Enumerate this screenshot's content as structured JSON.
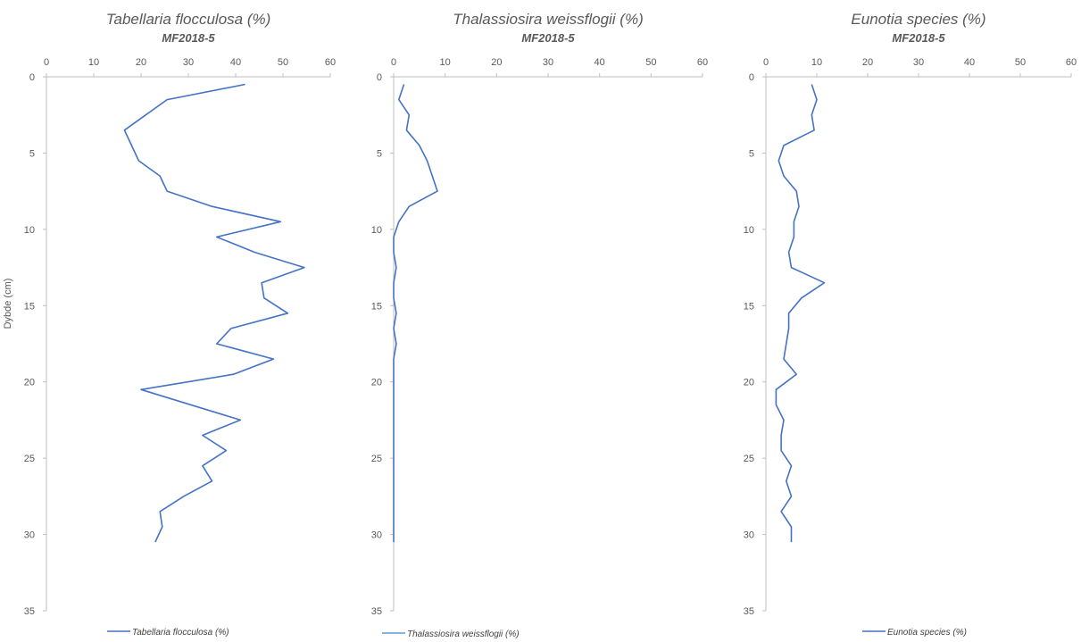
{
  "chart_data": [
    {
      "type": "line",
      "title": "Tabellaria flocculosa (%)",
      "subtitle": "MF2018-5",
      "ylabel": "Dybde (cm)",
      "xlim": [
        0,
        60
      ],
      "ylim": [
        0,
        35
      ],
      "x_ticks": [
        "0",
        "10",
        "20",
        "30",
        "40",
        "50",
        "60"
      ],
      "y_ticks": [
        "0",
        "5",
        "10",
        "15",
        "20",
        "25",
        "30",
        "35"
      ],
      "y_reversed": true,
      "legend": "bottom",
      "series": [
        {
          "name": "Tabellaria flocculosa (%)",
          "color": "#4472c4",
          "points": [
            [
              42,
              0.5
            ],
            [
              25.5,
              1.5
            ],
            [
              21,
              2.5
            ],
            [
              16.5,
              3.5
            ],
            [
              18,
              4.5
            ],
            [
              19.5,
              5.5
            ],
            [
              24,
              6.5
            ],
            [
              25.5,
              7.5
            ],
            [
              35,
              8.5
            ],
            [
              49.5,
              9.5
            ],
            [
              36,
              10.5
            ],
            [
              44,
              11.5
            ],
            [
              54.5,
              12.5
            ],
            [
              45.5,
              13.5
            ],
            [
              46,
              14.5
            ],
            [
              51,
              15.5
            ],
            [
              39,
              16.5
            ],
            [
              36,
              17.5
            ],
            [
              48,
              18.5
            ],
            [
              39.5,
              19.5
            ],
            [
              20,
              20.5
            ],
            [
              41,
              22.5
            ],
            [
              33,
              23.5
            ],
            [
              38,
              24.5
            ],
            [
              33,
              25.5
            ],
            [
              35,
              26.5
            ],
            [
              29,
              27.5
            ],
            [
              24,
              28.5
            ],
            [
              24.5,
              29.5
            ],
            [
              23,
              30.5
            ]
          ]
        }
      ]
    },
    {
      "type": "line",
      "title": "Thalassiosira weissflogii (%)",
      "subtitle": "MF2018-5",
      "xlim": [
        0,
        60
      ],
      "ylim": [
        0,
        35
      ],
      "x_ticks": [
        "0",
        "10",
        "20",
        "30",
        "40",
        "50",
        "60"
      ],
      "y_ticks": [
        "0",
        "5",
        "10",
        "15",
        "20",
        "25",
        "30",
        "35"
      ],
      "y_reversed": true,
      "legend": "bottom",
      "series": [
        {
          "name": "Thalassiosira weissflogii (%)",
          "color": "#4472c4",
          "legend_color": "#5b9bd5",
          "points": [
            [
              2,
              0.5
            ],
            [
              1,
              1.5
            ],
            [
              3,
              2.5
            ],
            [
              2.5,
              3.5
            ],
            [
              5,
              4.5
            ],
            [
              6.5,
              5.5
            ],
            [
              7.5,
              6.5
            ],
            [
              8.5,
              7.5
            ],
            [
              3,
              8.5
            ],
            [
              1,
              9.5
            ],
            [
              0,
              10.5
            ],
            [
              0,
              11.5
            ],
            [
              0.5,
              12.5
            ],
            [
              0,
              13.5
            ],
            [
              0,
              14.5
            ],
            [
              0.5,
              15.5
            ],
            [
              0,
              16.5
            ],
            [
              0.5,
              17.5
            ],
            [
              0,
              18.5
            ],
            [
              0,
              19.5
            ],
            [
              0,
              20.5
            ],
            [
              0,
              22.5
            ],
            [
              0,
              23.5
            ],
            [
              0,
              24.5
            ],
            [
              0,
              25.5
            ],
            [
              0,
              26.5
            ],
            [
              0,
              27.5
            ],
            [
              0,
              28.5
            ],
            [
              0,
              29.5
            ],
            [
              0,
              30.5
            ]
          ]
        }
      ]
    },
    {
      "type": "line",
      "title": "Eunotia species (%)",
      "subtitle": "MF2018-5",
      "xlim": [
        0,
        60
      ],
      "ylim": [
        0,
        35
      ],
      "x_ticks": [
        "0",
        "10",
        "20",
        "30",
        "40",
        "50",
        "60"
      ],
      "y_ticks": [
        "0",
        "5",
        "10",
        "15",
        "20",
        "25",
        "30",
        "35"
      ],
      "y_reversed": true,
      "legend": "bottom",
      "series": [
        {
          "name": "Eunotia species (%)",
          "color": "#4472c4",
          "points": [
            [
              9,
              0.5
            ],
            [
              10,
              1.5
            ],
            [
              9,
              2.5
            ],
            [
              9.5,
              3.5
            ],
            [
              3.5,
              4.5
            ],
            [
              2.5,
              5.5
            ],
            [
              3.5,
              6.5
            ],
            [
              6,
              7.5
            ],
            [
              6.5,
              8.5
            ],
            [
              5.5,
              9.5
            ],
            [
              5.5,
              10.5
            ],
            [
              4.5,
              11.5
            ],
            [
              5,
              12.5
            ],
            [
              11.5,
              13.5
            ],
            [
              7,
              14.5
            ],
            [
              4.5,
              15.5
            ],
            [
              4.5,
              16.5
            ],
            [
              4,
              17.5
            ],
            [
              3.5,
              18.5
            ],
            [
              6,
              19.5
            ],
            [
              2,
              20.5
            ],
            [
              2,
              21.5
            ],
            [
              3.5,
              22.5
            ],
            [
              3,
              23.5
            ],
            [
              3,
              24.5
            ],
            [
              5,
              25.5
            ],
            [
              4,
              26.5
            ],
            [
              5,
              27.5
            ],
            [
              3,
              28.5
            ],
            [
              5,
              29.5
            ],
            [
              5,
              30.5
            ]
          ]
        }
      ]
    }
  ]
}
